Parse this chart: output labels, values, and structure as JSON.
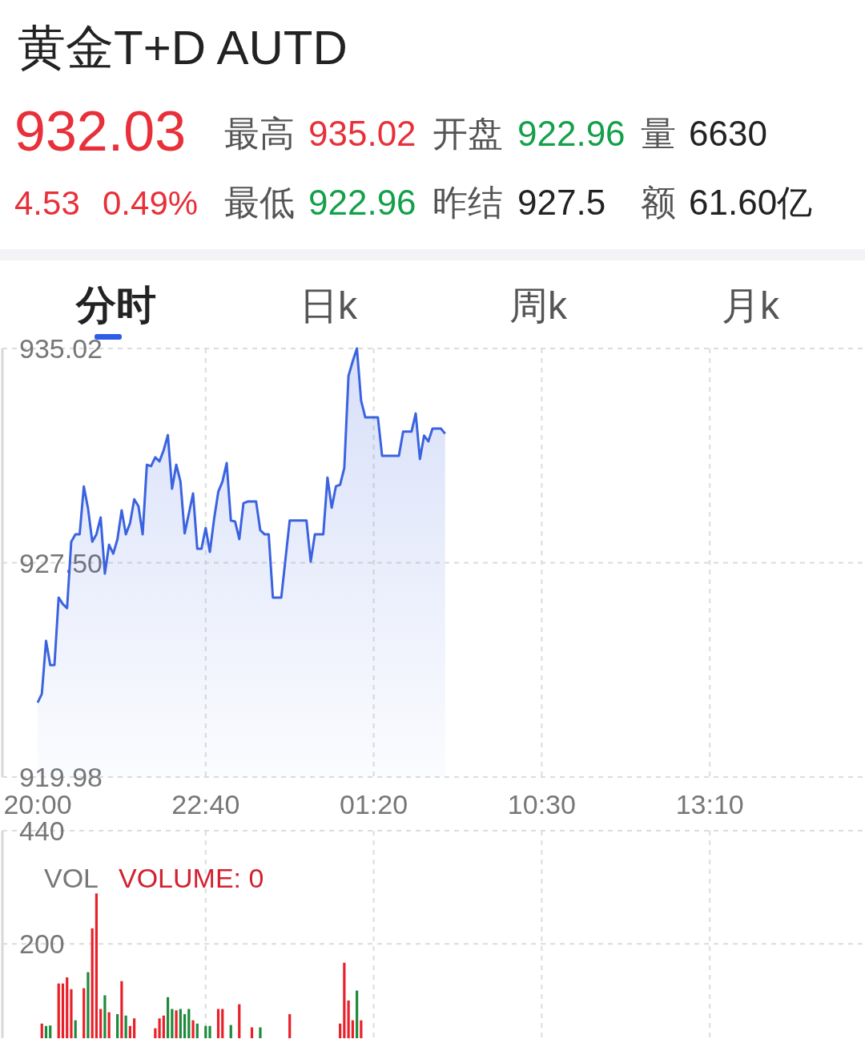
{
  "chart_data": [
    {
      "type": "other",
      "title": "黄金T+D AUTD",
      "annotations": [
        "932.03",
        "最高",
        "935.02",
        "开盘",
        "922.96",
        "量",
        "6630",
        "4.53",
        "0.49%",
        "最低",
        "922.96",
        "昨结",
        "927.5",
        "额",
        "61.60亿",
        "分时",
        "日k",
        "周k",
        "月k"
      ]
    },
    {
      "type": "area",
      "color": "#3b63e0",
      "grid": true,
      "categories": [
        "20:00",
        null,
        null,
        null,
        null,
        null,
        null,
        null,
        null,
        null,
        null,
        null,
        null,
        null,
        null,
        null,
        null,
        null,
        null,
        null,
        null,
        null,
        null,
        null,
        null,
        null,
        null,
        null,
        null,
        null,
        null,
        null,
        null,
        null,
        null,
        null,
        null,
        null,
        null,
        null,
        "22:40",
        null,
        null,
        null,
        null,
        null,
        null,
        null,
        null,
        null,
        null,
        null,
        null,
        null,
        null,
        null,
        null,
        null,
        null,
        null,
        null,
        null,
        null,
        null,
        null,
        null,
        null,
        null,
        null,
        null,
        null,
        null,
        null,
        null,
        null,
        null,
        null,
        null,
        null,
        null,
        "01:20",
        null,
        null,
        null,
        null,
        null,
        null,
        null,
        null,
        null,
        null,
        null,
        null,
        null,
        null,
        null,
        null,
        null,
        null,
        null,
        null,
        null,
        null,
        null,
        null,
        null,
        null,
        null,
        null,
        null,
        null,
        null,
        null,
        null,
        null,
        null,
        null,
        null,
        null,
        null,
        "10:30",
        null,
        null,
        null,
        null,
        null,
        null,
        null,
        null,
        null,
        null,
        null,
        null,
        null,
        null,
        null,
        null,
        null,
        null,
        null,
        null,
        null,
        null,
        null,
        null,
        null,
        null,
        null,
        null,
        null,
        null,
        null,
        null,
        null,
        null,
        null,
        null,
        null,
        null,
        null,
        "13:10",
        null,
        null,
        null,
        null,
        null,
        null,
        null,
        null,
        null,
        null,
        null,
        null,
        null,
        null,
        null,
        null,
        null,
        null,
        null,
        null,
        null,
        null,
        null,
        null,
        null,
        null,
        null,
        null,
        null,
        null,
        null,
        null,
        null,
        null,
        null,
        null
      ],
      "ylim": [
        919.98,
        935.02
      ],
      "yticks": [
        935.02,
        {
          "value": 927.5,
          "label": "927.50"
        },
        919.98
      ],
      "values": [
        922.59,
        922.9,
        924.76,
        923.91,
        923.91,
        926.28,
        926.05,
        925.91,
        928.24,
        928.5,
        928.5,
        930.18,
        929.4,
        928.24,
        928.5,
        929.09,
        927.12,
        928.13,
        927.82,
        928.33,
        929.34,
        928.5,
        928.89,
        929.73,
        929.48,
        928.5,
        930.94,
        930.89,
        931.2,
        931.06,
        931.45,
        931.98,
        930.1,
        930.94,
        930.35,
        928.53,
        929.23,
        929.93,
        927.99,
        927.99,
        928.72,
        927.88,
        929.03,
        929.99,
        930.35,
        931.0,
        928.98,
        928.95,
        928.33,
        929.59,
        929.65,
        929.65,
        929.65,
        928.64,
        928.5,
        928.5,
        926.28,
        926.28,
        926.28,
        927.63,
        928.98,
        928.98,
        928.98,
        928.98,
        928.98,
        927.54,
        928.5,
        928.5,
        928.5,
        930.49,
        929.43,
        930.18,
        930.24,
        930.83,
        934.06,
        934.57,
        935.02,
        933.19,
        932.6,
        932.6,
        932.6,
        932.6,
        931.25,
        931.25,
        931.25,
        931.25,
        931.25,
        932.1,
        932.1,
        932.1,
        932.74,
        931.14,
        931.96,
        931.76,
        932.21,
        932.21,
        932.21,
        932.03,
        null,
        null,
        null,
        null,
        null,
        null,
        null,
        null,
        null,
        null,
        null,
        null,
        null,
        null,
        null,
        null,
        null,
        null,
        null,
        null,
        null,
        null,
        null,
        null,
        null,
        null,
        null,
        null,
        null,
        null,
        null,
        null,
        null,
        null,
        null,
        null,
        null,
        null,
        null,
        null,
        null,
        null,
        null,
        null,
        null,
        null,
        null,
        null,
        null,
        null,
        null,
        null,
        null,
        null,
        null,
        null,
        null,
        null,
        null,
        null,
        null,
        null,
        null,
        null,
        null,
        null,
        null,
        null,
        null,
        null,
        null,
        null,
        null,
        null,
        null,
        null,
        null,
        null,
        null,
        null,
        null,
        null,
        null,
        null,
        null,
        null,
        null,
        null,
        null,
        null,
        null,
        null,
        null,
        null,
        null,
        null,
        null,
        null,
        null
      ]
    },
    {
      "type": "bar",
      "grid": true,
      "tick_labels": "y",
      "categories": [
        null,
        null,
        null,
        null,
        null,
        null,
        null,
        null,
        null,
        null,
        null,
        null,
        null,
        null,
        null,
        null,
        null,
        null,
        null,
        null,
        null,
        null,
        null,
        null,
        null,
        null,
        null,
        null,
        null,
        null,
        null,
        null,
        null,
        null,
        null,
        null,
        null,
        null,
        null,
        null,
        null,
        null,
        null,
        null,
        null,
        null,
        null,
        null,
        null,
        null,
        null,
        null,
        null,
        null,
        null,
        null,
        null,
        null,
        null,
        null,
        null,
        null,
        null,
        null,
        null,
        null,
        null,
        null,
        null,
        null,
        null,
        null,
        null,
        null,
        null,
        null,
        null,
        null,
        null,
        null,
        null,
        null,
        null,
        null,
        null,
        null,
        null,
        null,
        null,
        null,
        null,
        null,
        null,
        null,
        null,
        null,
        null,
        null,
        null,
        null,
        null,
        null,
        null,
        null,
        null,
        null,
        null,
        null,
        null,
        null,
        null,
        null,
        null,
        null,
        null,
        null,
        null,
        null,
        null,
        null,
        null,
        null,
        null,
        null,
        null,
        null,
        null,
        null,
        null,
        null,
        null,
        null,
        null,
        null,
        null,
        null,
        null,
        null,
        null,
        null,
        null,
        null,
        null,
        null,
        null,
        null,
        null,
        null,
        null,
        null,
        null,
        null,
        null,
        null,
        null,
        null,
        null,
        null,
        null,
        null,
        null,
        null,
        null,
        null,
        null,
        null,
        null,
        null,
        null,
        null,
        null,
        null,
        null,
        null,
        null,
        null,
        null,
        null,
        null,
        null,
        null,
        null,
        null,
        null,
        null,
        null,
        null,
        null,
        null,
        null,
        null,
        null,
        null,
        null,
        null,
        null,
        null
      ],
      "ylim": [
        0,
        440
      ],
      "yticks": [
        200,
        440
      ],
      "annotations": [
        "VOL",
        "VOLUME: 0"
      ],
      "values": [
        null,
        31,
        26,
        27,
        null,
        116,
        116,
        129,
        104,
        38,
        null,
        106,
        140,
        233,
        307,
        62,
        91,
        55,
        null,
        51,
        121,
        48,
        26,
        42,
        null,
        null,
        null,
        null,
        21,
        42,
        48,
        87,
        62,
        59,
        62,
        51,
        62,
        38,
        31,
        null,
        26,
        26,
        null,
        62,
        62,
        null,
        28,
        null,
        72,
        null,
        null,
        23,
        null,
        23,
        null,
        null,
        null,
        null,
        null,
        null,
        51,
        null,
        null,
        null,
        null,
        null,
        null,
        null,
        null,
        null,
        null,
        null,
        31,
        160,
        80,
        38,
        101,
        38,
        null,
        null,
        null,
        null,
        null,
        null,
        null,
        null,
        null,
        null,
        null,
        null,
        null,
        null,
        null,
        null,
        null,
        null,
        null,
        null,
        null,
        null,
        null,
        null,
        null,
        null,
        null,
        null,
        null,
        null,
        null,
        null,
        null,
        null,
        null,
        null,
        null,
        null,
        null,
        null,
        null,
        null,
        null,
        null,
        null,
        null,
        null,
        null,
        null,
        null,
        null,
        null,
        null,
        null,
        null,
        null,
        null,
        null,
        null,
        null,
        null,
        null,
        null,
        null,
        null,
        null,
        null,
        null,
        null,
        null,
        null,
        null,
        null,
        null,
        null,
        null,
        null,
        null,
        null,
        null,
        null,
        null,
        null,
        null,
        null,
        null,
        null,
        null,
        null,
        null,
        null,
        null,
        null,
        null,
        null,
        null,
        null,
        null,
        null,
        null,
        null,
        null,
        null,
        null,
        null,
        null,
        null,
        null,
        null,
        null,
        null,
        null,
        null,
        null,
        null,
        null,
        null,
        null,
        null
      ],
      "colors": [
        null,
        "#e8202a",
        "#1e8a3c",
        "#1e8a3c",
        null,
        "#e8202a",
        "#e8202a",
        "#e8202a",
        "#e8202a",
        "#1e8a3c",
        null,
        "#e8202a",
        "#1e8a3c",
        "#e8202a",
        "#e8202a",
        "#e8202a",
        "#1e8a3c",
        "#e8202a",
        null,
        "#1e8a3c",
        "#e8202a",
        "#1e8a3c",
        "#e8202a",
        "#e8202a",
        null,
        null,
        null,
        null,
        "#e8202a",
        "#e8202a",
        "#e8202a",
        "#1e8a3c",
        "#1e8a3c",
        "#e8202a",
        "#1e8a3c",
        "#1e8a3c",
        "#1e8a3c",
        "#e8202a",
        "#1e8a3c",
        null,
        "#1e8a3c",
        "#1e8a3c",
        null,
        "#e8202a",
        "#e8202a",
        null,
        "#1e8a3c",
        null,
        "#e8202a",
        null,
        null,
        "#e8202a",
        null,
        "#1e8a3c",
        null,
        null,
        null,
        null,
        null,
        null,
        "#e8202a",
        null,
        null,
        null,
        null,
        null,
        null,
        null,
        null,
        null,
        null,
        null,
        "#e8202a",
        "#e8202a",
        "#e8202a",
        "#e8202a",
        "#1e8a3c",
        "#e8202a",
        null,
        null,
        null,
        null,
        null,
        null,
        null,
        null,
        null,
        null,
        null,
        null,
        null,
        null,
        null,
        null,
        null,
        null,
        null,
        null,
        null,
        null,
        null,
        null,
        null,
        null,
        null,
        null,
        null,
        null,
        null,
        null,
        null,
        null,
        null,
        null,
        null,
        null,
        null,
        null,
        null,
        null,
        null,
        null,
        null,
        null,
        null,
        null,
        null,
        null,
        null,
        null,
        null,
        null,
        null,
        null,
        null,
        null,
        null,
        null,
        null,
        null,
        null,
        null,
        null,
        null,
        null,
        null,
        null,
        null,
        null,
        null,
        null,
        null,
        null,
        null,
        null,
        null,
        null,
        null,
        null,
        null,
        null,
        null,
        null,
        null,
        null,
        null,
        null,
        null,
        null,
        null,
        null,
        null,
        null,
        null,
        null,
        null,
        null,
        null,
        null,
        null,
        null,
        null,
        null,
        null,
        null,
        null,
        null,
        null,
        null,
        null,
        null,
        null,
        null,
        null,
        null,
        null,
        null
      ]
    }
  ]
}
